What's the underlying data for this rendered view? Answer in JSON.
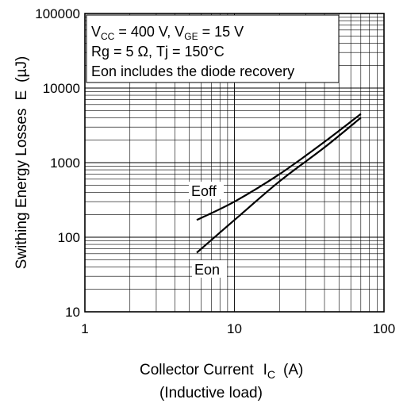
{
  "chart_data": {
    "type": "line",
    "x_scale": "log",
    "y_scale": "log",
    "xlim": [
      1,
      100
    ],
    "ylim": [
      10,
      100000
    ],
    "grid": true,
    "x_ticks": [
      "1",
      "10",
      "100"
    ],
    "y_ticks": [
      "10",
      "100",
      "1000",
      "10000",
      "100000"
    ],
    "ylabel_text": "Swithing Energy Losses",
    "ylabel_symbol": "E",
    "ylabel_unit": "(µJ)",
    "xlabel_text": "Collector Current",
    "xlabel_symbol": "I",
    "xlabel_symbol_sub": "C",
    "xlabel_unit": "(A)",
    "xlabel_sub": "(Inductive load)",
    "conditions": {
      "line1_vcc_pre": "V",
      "line1_vcc_sub": "CC",
      "line1_vcc_post": " = 400 V, V",
      "line1_vge_sub": "GE",
      "line1_vge_post": " = 15 V",
      "line2": "Rg = 5 Ω, Tj = 150°C",
      "line3": "Eon includes the diode recovery"
    },
    "series": [
      {
        "name": "Eoff",
        "x": [
          5.6,
          10,
          20,
          40,
          70
        ],
        "y": [
          170,
          300,
          700,
          1900,
          4500
        ]
      },
      {
        "name": "Eon",
        "x": [
          5.6,
          10,
          20,
          40,
          70
        ],
        "y": [
          62,
          170,
          560,
          1600,
          4000
        ]
      }
    ]
  }
}
